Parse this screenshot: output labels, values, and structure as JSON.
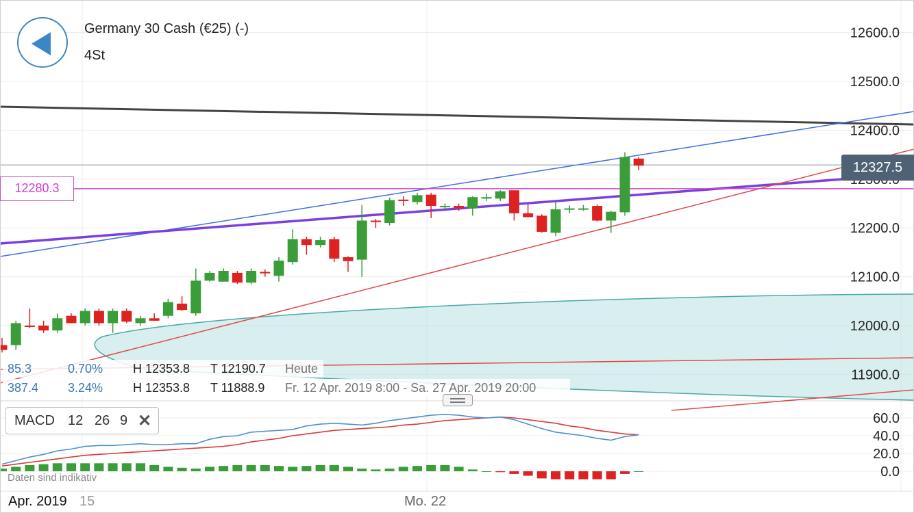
{
  "header": {
    "title": "Germany 30 Cash (€25) (-)",
    "timeframe": "4St"
  },
  "price_tags": {
    "horizontal_level": "12280.3",
    "last_price": "12327.5"
  },
  "info": {
    "row1": {
      "change": "85.3",
      "percent": "0.70%",
      "high": "H 12353.8",
      "low": "T 12190.7",
      "period": "Heute"
    },
    "row2": {
      "change": "387.4",
      "percent": "3.24%",
      "high": "H 12353.8",
      "low": "T 11888.9",
      "period": "Fr. 12 Apr. 2019 8:00 - Sa. 27 Apr. 2019 20:00"
    }
  },
  "macd": {
    "label": "MACD",
    "fast": "12",
    "slow": "26",
    "signal": "9"
  },
  "disclaimer": "Daten sind indikativ",
  "x_labels": {
    "first": "Apr. 2019",
    "second": "15",
    "third": "Mo. 22"
  },
  "colors": {
    "bull": "#3a9d3a",
    "bear": "#dd2222",
    "macd_line": "#4a90d0",
    "signal_line": "#d83a3a",
    "channel_top": "#3c6fe0",
    "trend_purple": "#7b3fe0",
    "support_red": "#dd4a4a",
    "resistance_dark": "#444444",
    "level_magenta": "#cc44cc",
    "cloud": "#bfe3e3"
  },
  "chart_data": [
    {
      "type": "candlestick",
      "y_ticks": [
        "12600.0",
        "12500.0",
        "12400.0",
        "12300.0",
        "12200.0",
        "12100.0",
        "12000.0",
        "11900.0"
      ],
      "ylim": [
        11850,
        12660
      ],
      "candles": [
        {
          "o": 11960,
          "h": 11975,
          "l": 11945,
          "c": 11950
        },
        {
          "o": 11960,
          "h": 12010,
          "l": 11950,
          "c": 12005
        },
        {
          "o": 12000,
          "h": 12035,
          "l": 11995,
          "c": 11998
        },
        {
          "o": 12000,
          "h": 12010,
          "l": 11985,
          "c": 11990
        },
        {
          "o": 11990,
          "h": 12025,
          "l": 11985,
          "c": 12015
        },
        {
          "o": 12020,
          "h": 12025,
          "l": 12005,
          "c": 12005
        },
        {
          "o": 12005,
          "h": 12035,
          "l": 12000,
          "c": 12030
        },
        {
          "o": 12030,
          "h": 12035,
          "l": 12000,
          "c": 12005
        },
        {
          "o": 12005,
          "h": 12035,
          "l": 11985,
          "c": 12030
        },
        {
          "o": 12030,
          "h": 12035,
          "l": 12005,
          "c": 12008
        },
        {
          "o": 12005,
          "h": 12020,
          "l": 12000,
          "c": 12015
        },
        {
          "o": 12015,
          "h": 12025,
          "l": 12010,
          "c": 12010
        },
        {
          "o": 12020,
          "h": 12055,
          "l": 12015,
          "c": 12048
        },
        {
          "o": 12045,
          "h": 12060,
          "l": 12030,
          "c": 12032
        },
        {
          "o": 12025,
          "h": 12117,
          "l": 12020,
          "c": 12092
        },
        {
          "o": 12092,
          "h": 12112,
          "l": 12090,
          "c": 12108
        },
        {
          "o": 12090,
          "h": 12117,
          "l": 12090,
          "c": 12112
        },
        {
          "o": 12108,
          "h": 12112,
          "l": 12085,
          "c": 12088
        },
        {
          "o": 12088,
          "h": 12117,
          "l": 12085,
          "c": 12112
        },
        {
          "o": 12110,
          "h": 12115,
          "l": 12100,
          "c": 12107
        },
        {
          "o": 12102,
          "h": 12140,
          "l": 12090,
          "c": 12133
        },
        {
          "o": 12130,
          "h": 12197,
          "l": 12125,
          "c": 12177
        },
        {
          "o": 12177,
          "h": 12182,
          "l": 12145,
          "c": 12165
        },
        {
          "o": 12165,
          "h": 12182,
          "l": 12160,
          "c": 12175
        },
        {
          "o": 12177,
          "h": 12182,
          "l": 12130,
          "c": 12137
        },
        {
          "o": 12140,
          "h": 12142,
          "l": 12110,
          "c": 12132
        },
        {
          "o": 12135,
          "h": 12247,
          "l": 12100,
          "c": 12215
        },
        {
          "o": 12215,
          "h": 12218,
          "l": 12200,
          "c": 12212
        },
        {
          "o": 12210,
          "h": 12262,
          "l": 12205,
          "c": 12257
        },
        {
          "o": 12258,
          "h": 12265,
          "l": 12245,
          "c": 12255
        },
        {
          "o": 12253,
          "h": 12272,
          "l": 12248,
          "c": 12267
        },
        {
          "o": 12268,
          "h": 12272,
          "l": 12220,
          "c": 12245
        },
        {
          "o": 12245,
          "h": 12250,
          "l": 12238,
          "c": 12245
        },
        {
          "o": 12245,
          "h": 12250,
          "l": 12235,
          "c": 12240
        },
        {
          "o": 12240,
          "h": 12265,
          "l": 12225,
          "c": 12263
        },
        {
          "o": 12260,
          "h": 12270,
          "l": 12255,
          "c": 12263
        },
        {
          "o": 12260,
          "h": 12277,
          "l": 12255,
          "c": 12275
        },
        {
          "o": 12277,
          "h": 12277,
          "l": 12215,
          "c": 12230
        },
        {
          "o": 12230,
          "h": 12248,
          "l": 12222,
          "c": 12222
        },
        {
          "o": 12225,
          "h": 12228,
          "l": 12190,
          "c": 12192
        },
        {
          "o": 12190,
          "h": 12253,
          "l": 12183,
          "c": 12238
        },
        {
          "o": 12238,
          "h": 12246,
          "l": 12230,
          "c": 12240
        },
        {
          "o": 12240,
          "h": 12247,
          "l": 12235,
          "c": 12240
        },
        {
          "o": 12245,
          "h": 12248,
          "l": 12213,
          "c": 12215
        },
        {
          "o": 12215,
          "h": 12235,
          "l": 12190,
          "c": 12233
        },
        {
          "o": 12232,
          "h": 12355,
          "l": 12225,
          "c": 12345
        },
        {
          "o": 12342,
          "h": 12345,
          "l": 12318,
          "c": 12327.5
        }
      ]
    },
    {
      "type": "macd",
      "y_ticks": [
        "60.0",
        "40.0",
        "20.0",
        "0.0"
      ],
      "ylim": [
        -13,
        68
      ],
      "macd": [
        8,
        12,
        16,
        19,
        23,
        25,
        28,
        29,
        29,
        30,
        31,
        30,
        30,
        31,
        31,
        36,
        39,
        40,
        44,
        45,
        46,
        47,
        51,
        53,
        54,
        53,
        52,
        54,
        57,
        59,
        61,
        63,
        64,
        63,
        61,
        60,
        61,
        58,
        53,
        48,
        44,
        42,
        40,
        37,
        35,
        39,
        41
      ],
      "signal": [
        6,
        8,
        10,
        12,
        14,
        16,
        18,
        19,
        20,
        21,
        22,
        23,
        24,
        25,
        26,
        27,
        28,
        30,
        33,
        35,
        37,
        40,
        42,
        44,
        46,
        47,
        48,
        49,
        50,
        52,
        53,
        55,
        57,
        58,
        59,
        60,
        61,
        60,
        58,
        56,
        54,
        51,
        49,
        46,
        44,
        42,
        41
      ],
      "histogram": [
        3,
        5,
        7,
        8,
        9,
        9,
        9,
        9,
        9,
        9,
        9,
        7,
        5,
        4,
        3,
        5,
        6,
        7,
        7,
        7,
        6,
        5,
        6,
        7,
        7,
        5,
        3,
        2,
        3,
        5,
        6,
        7,
        7,
        5,
        2,
        0,
        -1,
        -3,
        -5,
        -8,
        -9,
        -9,
        -9,
        -9,
        -9,
        -3,
        0
      ]
    }
  ]
}
